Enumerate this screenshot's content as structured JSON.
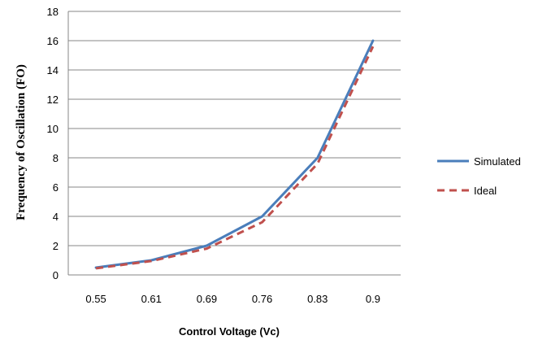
{
  "chart_data": {
    "type": "line",
    "categories": [
      "0.55",
      "0.61",
      "0.69",
      "0.76",
      "0.83",
      "0.9"
    ],
    "series": [
      {
        "name": "Simulated",
        "values": [
          0.5,
          1,
          2,
          4,
          8,
          16
        ],
        "color": "#4a7ebb",
        "style": "solid"
      },
      {
        "name": "Ideal",
        "values": [
          0.45,
          0.95,
          1.8,
          3.6,
          7.6,
          15.6
        ],
        "color": "#c0504d",
        "style": "dashed"
      }
    ],
    "xlabel": "Control Voltage (Vc)",
    "ylabel": "Frequency of Oscillation  (FO)",
    "ylim": [
      0,
      18
    ],
    "yticks": [
      0,
      2,
      4,
      6,
      8,
      10,
      12,
      14,
      16,
      18
    ],
    "grid": "horizontal",
    "legend_position": "right"
  }
}
